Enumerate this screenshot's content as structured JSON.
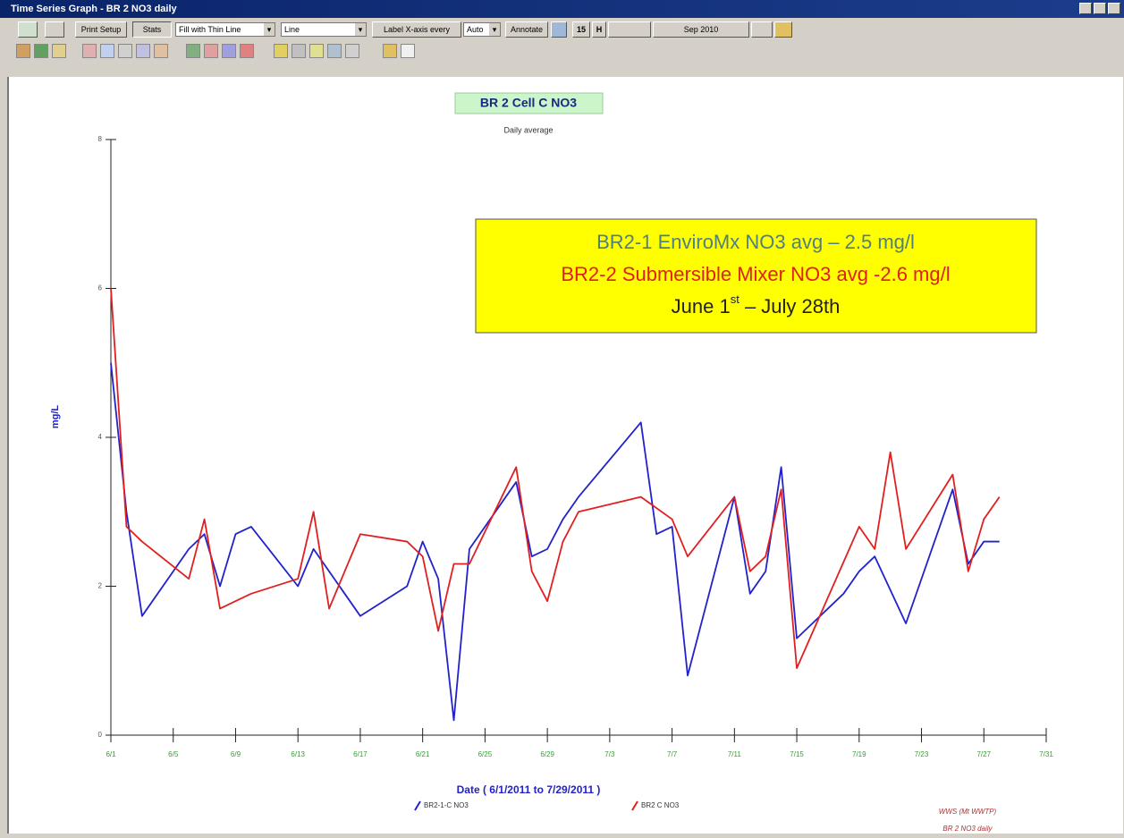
{
  "window": {
    "title": "Time Series Graph - BR 2 NO3 daily"
  },
  "toolbar": {
    "print_setup": "Print Setup",
    "stats": "Stats",
    "fill": "Fill with Thin Line",
    "line": "Line",
    "label_x": "Label X-axis every",
    "auto": "Auto",
    "annotate": "Annotate",
    "interval": "15",
    "unit": "H",
    "period": "Sep 2010"
  },
  "chart_data": {
    "type": "line",
    "title": "BR 2 Cell C NO3",
    "subtitle": "Daily average",
    "x_label": "Date  ( 6/1/2011  to  7/29/2011 )",
    "y_label": "mg/L",
    "annotation": {
      "line1": "BR2-1 EnviroMx NO3 avg – 2.5 mg/l",
      "line2": "BR2-2 Submersible Mixer NO3 avg -2.6 mg/l",
      "line3": [
        "June 1",
        "st",
        " – July 28th"
      ]
    },
    "footer": [
      "WWS (Mt WWTP)",
      "BR 2 NO3 daily"
    ],
    "xlim": [
      "6/1",
      "7/31"
    ],
    "xticks": [
      "6/1",
      "6/5",
      "6/9",
      "6/13",
      "6/17",
      "6/21",
      "6/25",
      "6/29",
      "7/3",
      "7/7",
      "7/11",
      "7/15",
      "7/19",
      "7/23",
      "7/27",
      "7/31"
    ],
    "ylim": [
      0,
      8
    ],
    "yticks": [
      0,
      2,
      4,
      6,
      8
    ],
    "series": [
      {
        "name": "BR2-1-C NO3",
        "color": "#2222cc",
        "x": [
          "6/1",
          "6/2",
          "6/3",
          "6/6",
          "6/7",
          "6/8",
          "6/9",
          "6/10",
          "6/13",
          "6/14",
          "6/17",
          "6/20",
          "6/21",
          "6/22",
          "6/23",
          "6/24",
          "6/27",
          "6/28",
          "6/29",
          "6/30",
          "7/1",
          "7/5",
          "7/6",
          "7/7",
          "7/8",
          "7/11",
          "7/12",
          "7/13",
          "7/14",
          "7/15",
          "7/18",
          "7/19",
          "7/20",
          "7/22",
          "7/25",
          "7/26",
          "7/27",
          "7/28"
        ],
        "values": [
          5.0,
          3.0,
          1.6,
          2.5,
          2.7,
          2.0,
          2.7,
          2.8,
          2.0,
          2.5,
          1.6,
          2.0,
          2.6,
          2.1,
          0.2,
          2.5,
          3.4,
          2.4,
          2.5,
          2.9,
          3.2,
          4.2,
          2.7,
          2.8,
          0.8,
          3.2,
          1.9,
          2.2,
          3.6,
          1.3,
          1.9,
          2.2,
          2.4,
          1.5,
          3.3,
          2.3,
          2.6,
          2.6
        ]
      },
      {
        "name": "BR2 C NO3",
        "color": "#e02020",
        "x": [
          "6/1",
          "6/2",
          "6/3",
          "6/6",
          "6/7",
          "6/8",
          "6/10",
          "6/13",
          "6/14",
          "6/15",
          "6/17",
          "6/20",
          "6/21",
          "6/22",
          "6/23",
          "6/24",
          "6/27",
          "6/28",
          "6/29",
          "6/30",
          "7/1",
          "7/5",
          "7/7",
          "7/8",
          "7/11",
          "7/12",
          "7/13",
          "7/14",
          "7/15",
          "7/19",
          "7/20",
          "7/21",
          "7/22",
          "7/25",
          "7/26",
          "7/27",
          "7/28"
        ],
        "values": [
          6.0,
          2.8,
          2.6,
          2.1,
          2.9,
          1.7,
          1.9,
          2.1,
          3.0,
          1.7,
          2.7,
          2.6,
          2.4,
          1.4,
          2.3,
          2.3,
          3.6,
          2.2,
          1.8,
          2.6,
          3.0,
          3.2,
          2.9,
          2.4,
          3.2,
          2.2,
          2.4,
          3.3,
          0.9,
          2.8,
          2.5,
          3.8,
          2.5,
          3.5,
          2.2,
          2.9,
          3.2
        ]
      }
    ]
  }
}
